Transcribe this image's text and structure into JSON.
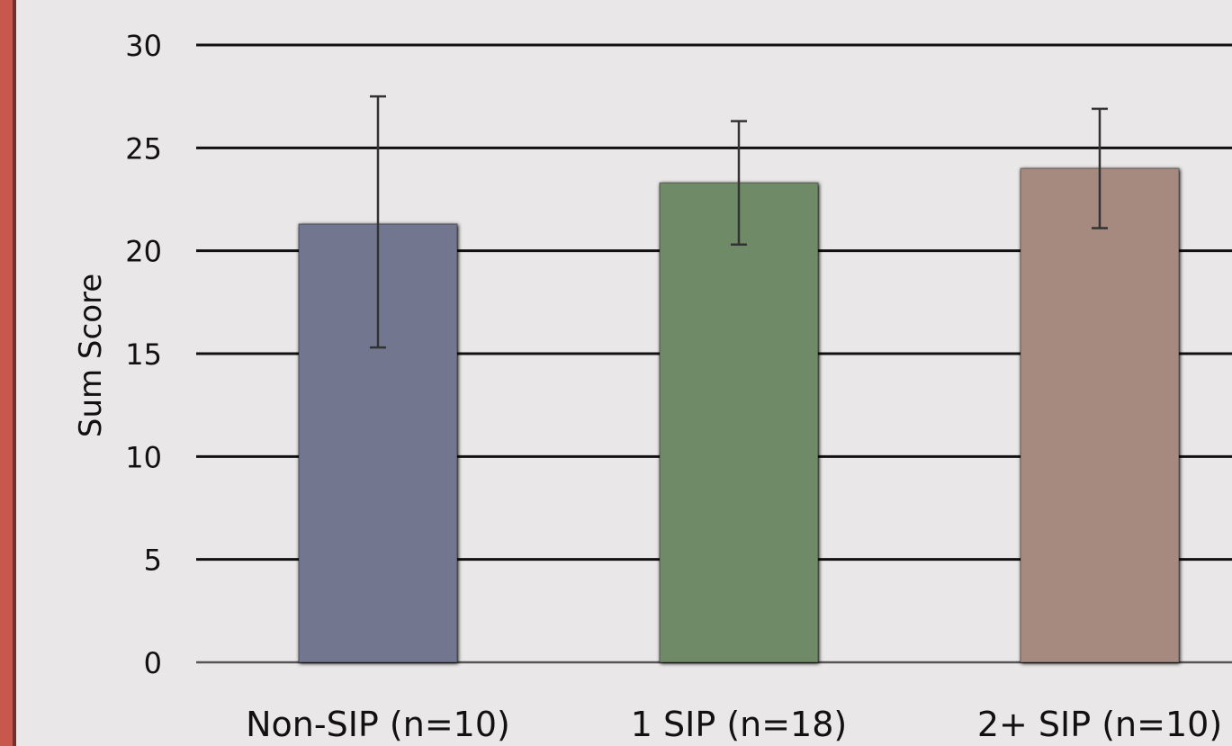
{
  "chart_data": {
    "type": "bar",
    "title": "",
    "xlabel": "",
    "ylabel": "Sum Score",
    "ylim": [
      0,
      30
    ],
    "yticks": [
      0,
      5,
      10,
      15,
      20,
      25,
      30
    ],
    "grid": true,
    "categories": [
      "Non-SIP (n=10)",
      "1 SIP (n=18)",
      "2+ SIP (n=10)"
    ],
    "values": [
      21.3,
      23.3,
      24.0
    ],
    "error": [
      {
        "low": 15.3,
        "high": 27.5
      },
      {
        "low": 20.3,
        "high": 26.3
      },
      {
        "low": 21.1,
        "high": 26.9
      }
    ],
    "colors": [
      "#72778f",
      "#6e8a66",
      "#a68a80"
    ]
  }
}
